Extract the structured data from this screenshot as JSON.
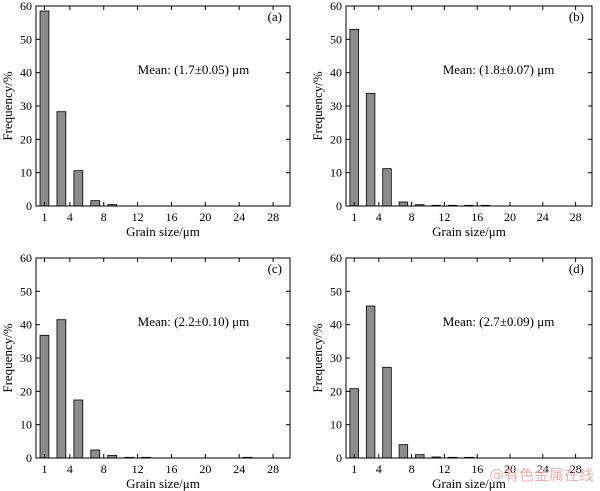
{
  "chart_data": [
    {
      "type": "bar",
      "panel_label": "(a)",
      "annotation": "Mean: (1.7±0.05) μm",
      "title": "",
      "xlabel": "Grain size/μm",
      "ylabel": "Frequency/%",
      "ylim": [
        0,
        60
      ],
      "yticks": [
        0,
        10,
        20,
        30,
        40,
        50,
        60
      ],
      "xlim": [
        0,
        30
      ],
      "xticks": [
        1,
        4,
        8,
        12,
        16,
        20,
        24,
        28
      ],
      "x": [
        1,
        3,
        5,
        7,
        9,
        11,
        13,
        15,
        17,
        19,
        21,
        23,
        25,
        27
      ],
      "values": [
        58.5,
        28.3,
        10.6,
        1.6,
        0.4,
        0,
        0,
        0,
        0,
        0,
        0,
        0,
        0,
        0
      ],
      "bar_color": "#8c8c8c"
    },
    {
      "type": "bar",
      "panel_label": "(b)",
      "annotation": "Mean: (1.8±0.07) μm",
      "title": "",
      "xlabel": "Grain size/μm",
      "ylabel": "Frequency/%",
      "ylim": [
        0,
        60
      ],
      "yticks": [
        0,
        10,
        20,
        30,
        40,
        50,
        60
      ],
      "xlim": [
        0,
        30
      ],
      "xticks": [
        1,
        4,
        8,
        12,
        16,
        20,
        24,
        28
      ],
      "x": [
        1,
        3,
        5,
        7,
        9,
        11,
        13,
        15,
        17,
        19,
        21,
        23,
        25,
        27
      ],
      "values": [
        53.0,
        33.8,
        11.2,
        1.2,
        0.4,
        0.2,
        0.2,
        0.2,
        0.2,
        0,
        0,
        0,
        0,
        0
      ],
      "bar_color": "#8c8c8c"
    },
    {
      "type": "bar",
      "panel_label": "(c)",
      "annotation": "Mean: (2.2±0.10) μm",
      "title": "",
      "xlabel": "Grain size/μm",
      "ylabel": "Frequency/%",
      "ylim": [
        0,
        60
      ],
      "yticks": [
        0,
        10,
        20,
        30,
        40,
        50,
        60
      ],
      "xlim": [
        0,
        30
      ],
      "xticks": [
        1,
        4,
        8,
        12,
        16,
        20,
        24,
        28
      ],
      "x": [
        1,
        3,
        5,
        7,
        9,
        11,
        13,
        15,
        17,
        19,
        21,
        23,
        25,
        27
      ],
      "values": [
        36.8,
        41.5,
        17.4,
        2.4,
        0.8,
        0.2,
        0.2,
        0,
        0,
        0,
        0,
        0,
        0.2,
        0
      ],
      "bar_color": "#8c8c8c"
    },
    {
      "type": "bar",
      "panel_label": "(d)",
      "annotation": "Mean: (2.7±0.09) μm",
      "title": "",
      "xlabel": "Grain size/μm",
      "ylabel": "Frequency/%",
      "ylim": [
        0,
        60
      ],
      "yticks": [
        0,
        10,
        20,
        30,
        40,
        50,
        60
      ],
      "xlim": [
        0,
        30
      ],
      "xticks": [
        1,
        4,
        8,
        12,
        16,
        20,
        24,
        28
      ],
      "x": [
        1,
        3,
        5,
        7,
        9,
        11,
        13,
        15,
        17,
        19,
        21,
        23,
        25,
        27
      ],
      "values": [
        20.8,
        45.6,
        27.2,
        4.0,
        1.0,
        0.3,
        0.2,
        0.2,
        0,
        0,
        0,
        0,
        0,
        0
      ],
      "bar_color": "#8c8c8c"
    }
  ],
  "watermark": "@有色金属在线"
}
